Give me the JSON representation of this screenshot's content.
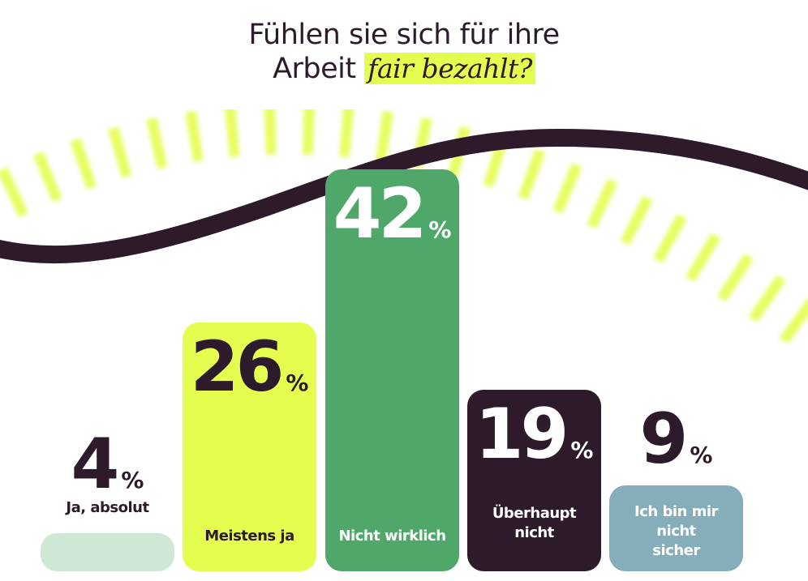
{
  "title": {
    "line1": "Fühlen sie sich für ihre",
    "line2_plain": "Arbeit",
    "line2_highlight": "fair bezahlt?"
  },
  "colors": {
    "dark": "#2d1a2b",
    "lime": "#e4fd4e",
    "green": "#4fa86a",
    "light_green": "#cfe8d6",
    "blue_gray": "#86aeba"
  },
  "chart_data": {
    "type": "bar",
    "title": "Fühlen sie sich für ihre Arbeit fair bezahlt?",
    "categories": [
      "Ja, absolut",
      "Meistens ja",
      "Nicht wirklich",
      "Überhaupt nicht",
      "Ich bin mir nicht sicher"
    ],
    "values": [
      4,
      26,
      42,
      19,
      9
    ],
    "unit": "%",
    "bar_colors": [
      "#cfe8d6",
      "#e4fd4e",
      "#4fa86a",
      "#2d1a2b",
      "#86aeba"
    ],
    "text_colors": [
      "#2d1a2b",
      "#2d1a2b",
      "#ffffff",
      "#ffffff",
      "#ffffff"
    ],
    "ylim": [
      0,
      42
    ],
    "grid": false
  }
}
